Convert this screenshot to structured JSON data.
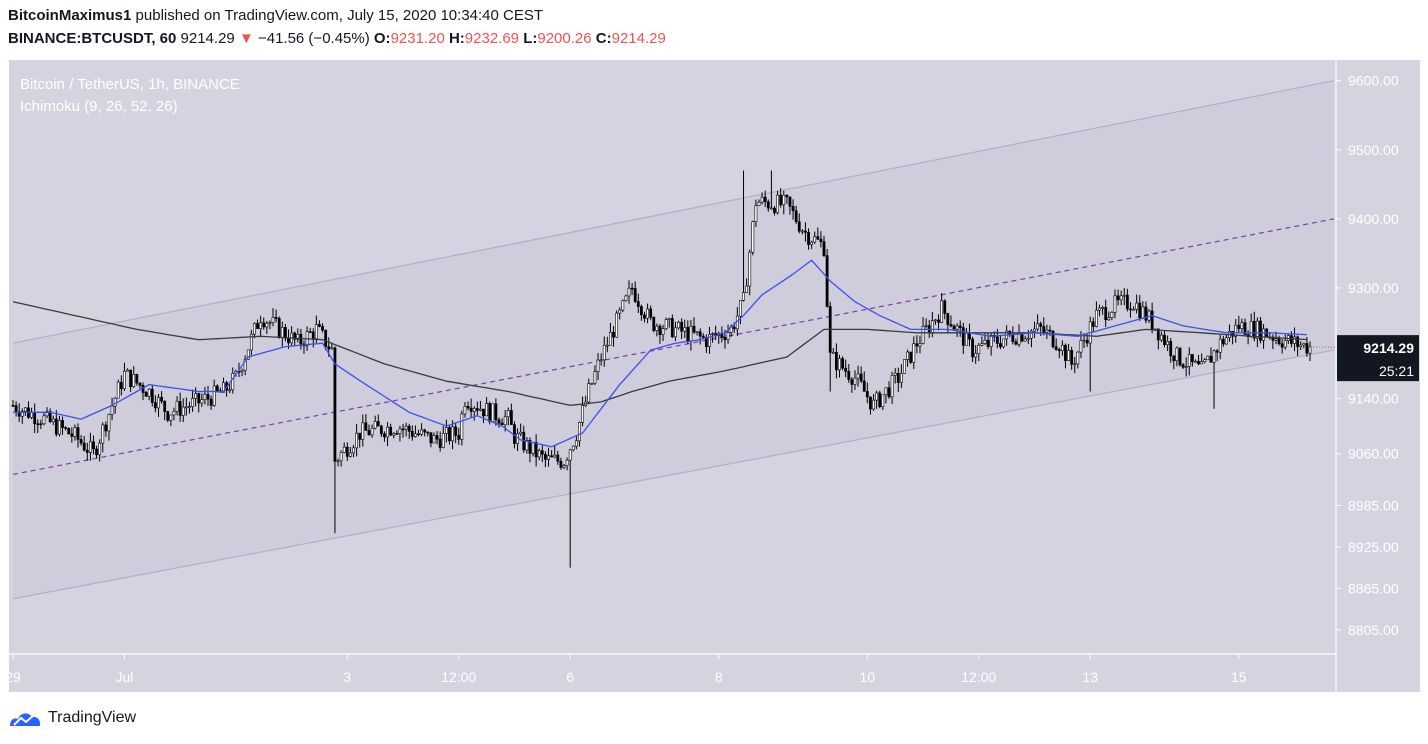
{
  "header": {
    "publisher": "BitcoinMaximus1",
    "published_text": "published on TradingView.com, July 15, 2020 10:34:40 CEST",
    "symbol": "BINANCE:BTCUSDT, 60",
    "last": "9214.29",
    "change": "−41.56 (−0.45%)",
    "o_label": "O:",
    "o_value": "9231.20",
    "h_label": "H:",
    "h_value": "9232.69",
    "l_label": "L:",
    "l_value": "9200.26",
    "c_label": "C:",
    "c_value": "9214.29"
  },
  "legend": {
    "title": "Bitcoin / TetherUS, 1h, BINANCE",
    "indicator": "Ichimoku (9, 26, 52, 26)"
  },
  "price_tag": {
    "price": "9214.29",
    "countdown": "25:21"
  },
  "footer": {
    "brand": "TradingView"
  },
  "colors": {
    "background": "#d3d4df",
    "channel_fill": "#cdcad9",
    "channel_line": "#b9a9cf",
    "midline": "#7b3fa8",
    "candle": "#000000",
    "conversion_line": "#3d50f0",
    "slow_line": "#3a3a3a",
    "tag_bg": "#131722"
  },
  "chart_data": {
    "type": "candlestick",
    "y_ticks": [
      "9600.00",
      "9500.00",
      "9400.00",
      "9300.00",
      "9140.00",
      "9060.00",
      "8985.00",
      "8925.00",
      "8865.00",
      "8805.00"
    ],
    "y_tick_values": [
      9600,
      9500,
      9400,
      9300,
      9140,
      9060,
      8985,
      8925,
      8865,
      8805
    ],
    "x_ticks": [
      "29",
      "Jul",
      "3",
      "12:00",
      "6",
      "8",
      "10",
      "12:00",
      "13",
      "15"
    ],
    "x_tick_hours": [
      0,
      36,
      108,
      144,
      180,
      228,
      276,
      312,
      348,
      396
    ],
    "candle_count": 420,
    "close_path": [
      [
        0,
        9130
      ],
      [
        10,
        9110
      ],
      [
        20,
        9085
      ],
      [
        26,
        9060
      ],
      [
        32,
        9130
      ],
      [
        36,
        9175
      ],
      [
        44,
        9150
      ],
      [
        50,
        9120
      ],
      [
        60,
        9135
      ],
      [
        68,
        9150
      ],
      [
        72,
        9170
      ],
      [
        80,
        9260
      ],
      [
        92,
        9220
      ],
      [
        98,
        9240
      ],
      [
        103,
        9210
      ],
      [
        104,
        9050
      ],
      [
        112,
        9090
      ],
      [
        124,
        9100
      ],
      [
        136,
        9080
      ],
      [
        144,
        9090
      ],
      [
        146,
        9140
      ],
      [
        154,
        9120
      ],
      [
        160,
        9110
      ],
      [
        162,
        9085
      ],
      [
        172,
        9050
      ],
      [
        178,
        9050
      ],
      [
        182,
        9090
      ],
      [
        186,
        9150
      ],
      [
        190,
        9200
      ],
      [
        196,
        9260
      ],
      [
        200,
        9300
      ],
      [
        206,
        9250
      ],
      [
        214,
        9240
      ],
      [
        224,
        9225
      ],
      [
        232,
        9240
      ],
      [
        236,
        9280
      ],
      [
        240,
        9425
      ],
      [
        250,
        9420
      ],
      [
        256,
        9380
      ],
      [
        262,
        9360
      ],
      [
        264,
        9200
      ],
      [
        272,
        9170
      ],
      [
        278,
        9130
      ],
      [
        286,
        9170
      ],
      [
        292,
        9220
      ],
      [
        300,
        9270
      ],
      [
        310,
        9210
      ],
      [
        322,
        9230
      ],
      [
        332,
        9240
      ],
      [
        338,
        9220
      ],
      [
        342,
        9190
      ],
      [
        350,
        9260
      ],
      [
        356,
        9275
      ],
      [
        362,
        9280
      ],
      [
        368,
        9250
      ],
      [
        376,
        9200
      ],
      [
        384,
        9180
      ],
      [
        390,
        9220
      ],
      [
        396,
        9245
      ],
      [
        402,
        9240
      ],
      [
        410,
        9225
      ],
      [
        419,
        9214
      ]
    ],
    "conversion_path": [
      [
        0,
        9120
      ],
      [
        12,
        9120
      ],
      [
        22,
        9110
      ],
      [
        32,
        9130
      ],
      [
        44,
        9160
      ],
      [
        60,
        9150
      ],
      [
        68,
        9150
      ],
      [
        76,
        9200
      ],
      [
        88,
        9215
      ],
      [
        100,
        9220
      ],
      [
        104,
        9190
      ],
      [
        114,
        9160
      ],
      [
        128,
        9120
      ],
      [
        140,
        9100
      ],
      [
        150,
        9115
      ],
      [
        158,
        9100
      ],
      [
        164,
        9080
      ],
      [
        174,
        9070
      ],
      [
        184,
        9090
      ],
      [
        196,
        9160
      ],
      [
        206,
        9210
      ],
      [
        214,
        9220
      ],
      [
        222,
        9225
      ],
      [
        230,
        9235
      ],
      [
        236,
        9260
      ],
      [
        242,
        9290
      ],
      [
        252,
        9320
      ],
      [
        258,
        9340
      ],
      [
        264,
        9310
      ],
      [
        272,
        9280
      ],
      [
        280,
        9260
      ],
      [
        290,
        9240
      ],
      [
        302,
        9240
      ],
      [
        316,
        9230
      ],
      [
        330,
        9235
      ],
      [
        344,
        9230
      ],
      [
        356,
        9245
      ],
      [
        368,
        9260
      ],
      [
        378,
        9245
      ],
      [
        392,
        9235
      ],
      [
        406,
        9235
      ],
      [
        419,
        9232
      ]
    ],
    "slow_path": [
      [
        0,
        9280
      ],
      [
        20,
        9260
      ],
      [
        40,
        9240
      ],
      [
        60,
        9225
      ],
      [
        80,
        9230
      ],
      [
        100,
        9225
      ],
      [
        120,
        9190
      ],
      [
        140,
        9165
      ],
      [
        160,
        9150
      ],
      [
        180,
        9130
      ],
      [
        190,
        9135
      ],
      [
        200,
        9150
      ],
      [
        212,
        9165
      ],
      [
        230,
        9180
      ],
      [
        250,
        9200
      ],
      [
        262,
        9240
      ],
      [
        276,
        9240
      ],
      [
        292,
        9235
      ],
      [
        310,
        9235
      ],
      [
        330,
        9235
      ],
      [
        350,
        9230
      ],
      [
        366,
        9240
      ],
      [
        384,
        9235
      ],
      [
        400,
        9230
      ],
      [
        419,
        9225
      ]
    ],
    "channel": {
      "upper": [
        [
          0,
          9220
        ],
        [
          419,
          9600
        ]
      ],
      "middle": [
        [
          0,
          9030
        ],
        [
          419,
          9400
        ]
      ],
      "lower": [
        [
          0,
          8850
        ],
        [
          419,
          9210
        ]
      ]
    },
    "last_price": 9214.29,
    "grid": false,
    "ylim": [
      8770,
      9630
    ]
  }
}
